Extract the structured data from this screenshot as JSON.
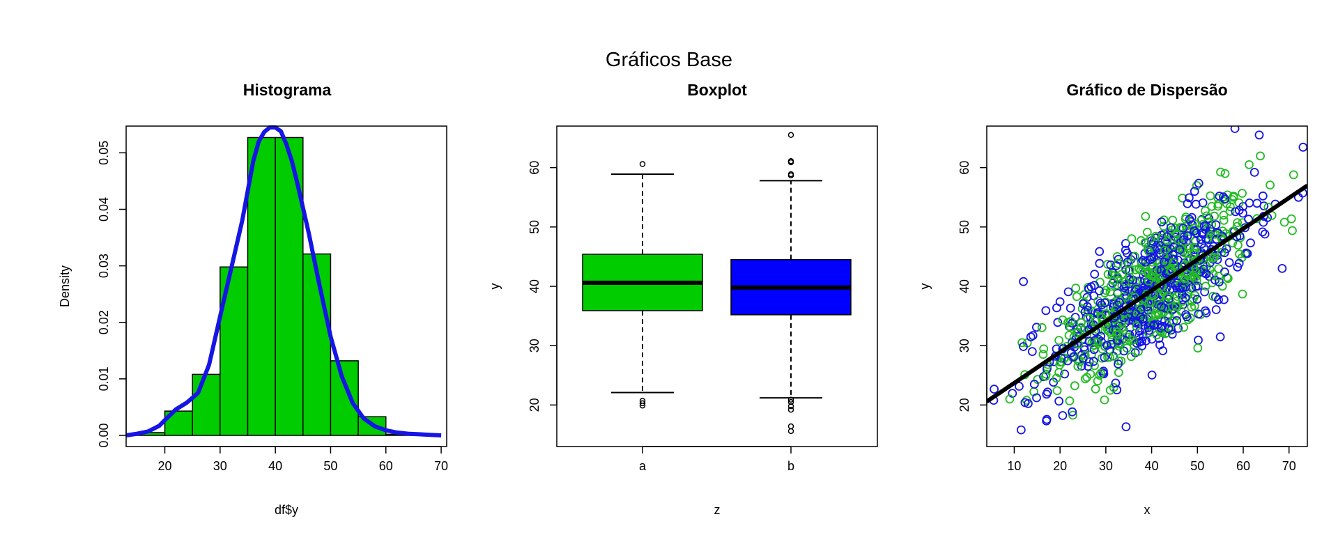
{
  "figure": {
    "title": "Gráficos Base"
  },
  "chart_data": [
    {
      "type": "bar",
      "subtype": "histogram_with_density",
      "title": "Histograma",
      "xlabel": "df$y",
      "ylabel": "Density",
      "xlim": [
        13,
        71
      ],
      "ylim": [
        0,
        0.055
      ],
      "x_ticks": [
        20,
        30,
        40,
        50,
        60,
        70
      ],
      "y_ticks": [
        "0.00",
        "0.01",
        "0.02",
        "0.03",
        "0.04",
        "0.05"
      ],
      "bins": [
        {
          "from": 15,
          "to": 20,
          "density": 0.0005
        },
        {
          "from": 20,
          "to": 25,
          "density": 0.0043
        },
        {
          "from": 25,
          "to": 30,
          "density": 0.0108
        },
        {
          "from": 30,
          "to": 35,
          "density": 0.0298
        },
        {
          "from": 35,
          "to": 40,
          "density": 0.0527
        },
        {
          "from": 40,
          "to": 45,
          "density": 0.0527
        },
        {
          "from": 45,
          "to": 50,
          "density": 0.0321
        },
        {
          "from": 50,
          "to": 55,
          "density": 0.0132
        },
        {
          "from": 55,
          "to": 60,
          "density": 0.0033
        },
        {
          "from": 60,
          "to": 65,
          "density": 0.0002
        }
      ],
      "bar_color": "#00CC00",
      "density_curve": {
        "color": "#1515E6",
        "x": [
          12,
          15,
          17,
          19,
          20,
          22,
          24,
          26,
          28,
          30,
          32,
          34,
          36,
          37,
          38,
          39,
          40,
          41,
          42,
          43,
          44,
          46,
          48,
          50,
          52,
          54,
          56,
          58,
          60,
          62,
          64,
          66,
          68,
          70
        ],
        "y": [
          0.0,
          0.0003,
          0.0007,
          0.0017,
          0.0027,
          0.0046,
          0.0058,
          0.0075,
          0.0125,
          0.021,
          0.0295,
          0.038,
          0.0485,
          0.052,
          0.0537,
          0.0545,
          0.0545,
          0.0538,
          0.0515,
          0.0485,
          0.0445,
          0.036,
          0.0265,
          0.0175,
          0.0105,
          0.0057,
          0.003,
          0.0016,
          0.0009,
          0.0005,
          0.0003,
          0.0002,
          0.0001,
          0.0
        ]
      }
    },
    {
      "type": "boxplot",
      "title": "Boxplot",
      "xlabel": "z",
      "ylabel": "y",
      "categories": [
        "a",
        "b"
      ],
      "ylim": [
        13,
        67
      ],
      "y_ticks": [
        20,
        30,
        40,
        50,
        60
      ],
      "boxes": [
        {
          "name": "a",
          "color": "#00CC00",
          "lower_whisker": 22.1,
          "q1": 35.9,
          "median": 40.6,
          "q3": 45.4,
          "upper_whisker": 58.9,
          "outliers": [
            60.6,
            20.7,
            20.3,
            19.9
          ]
        },
        {
          "name": "b",
          "color": "#0000FF",
          "lower_whisker": 21.2,
          "q1": 35.2,
          "median": 39.8,
          "q3": 44.5,
          "upper_whisker": 57.8,
          "outliers": [
            65.5,
            61.1,
            60.9,
            58.9,
            58.7,
            20.9,
            20.5,
            19.8,
            19.2,
            16.4,
            15.6
          ]
        }
      ]
    },
    {
      "type": "scatter",
      "title": "Gráfico de Dispersão",
      "xlabel": "x",
      "ylabel": "y",
      "xlim": [
        4,
        74
      ],
      "ylim": [
        13,
        67
      ],
      "x_ticks": [
        10,
        20,
        30,
        40,
        50,
        60,
        70
      ],
      "y_ticks": [
        20,
        30,
        40,
        50,
        60
      ],
      "series": [
        {
          "color": "#22BB22"
        },
        {
          "color": "#1515E6"
        }
      ],
      "regression_line": {
        "color": "#000000",
        "intercept": 18.5,
        "slope": 0.52
      },
      "points": {
        "n_per_series": 500,
        "x_mean": 40,
        "x_sd": 11,
        "y_intercept": 18.5,
        "y_slope": 0.52,
        "residual_sd": 5.2,
        "outlier_points": [
          {
            "series": 1,
            "x": 63.5,
            "y": 65.5
          },
          {
            "series": 1,
            "x": 11.5,
            "y": 15.8
          },
          {
            "series": 1,
            "x": 5.5,
            "y": 20.8
          },
          {
            "series": 1,
            "x": 12.0,
            "y": 40.8
          },
          {
            "series": 1,
            "x": 68.5,
            "y": 43.0
          },
          {
            "series": 0,
            "x": 71.0,
            "y": 58.8
          },
          {
            "series": 0,
            "x": 69.0,
            "y": 50.8
          },
          {
            "series": 0,
            "x": 9.0,
            "y": 21.0
          }
        ]
      }
    }
  ]
}
